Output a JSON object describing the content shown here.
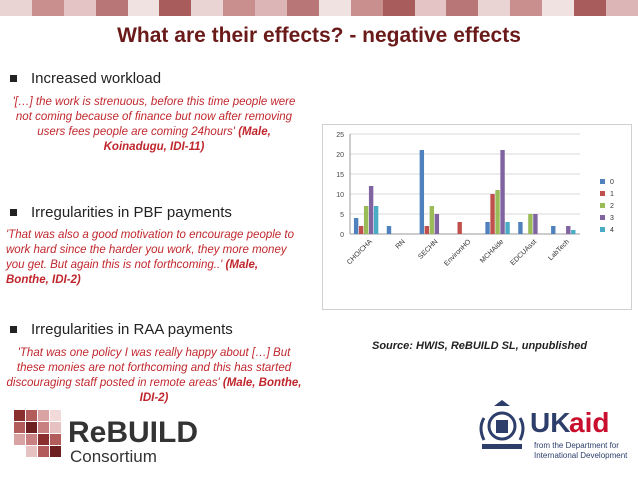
{
  "top_band_colors": [
    "#e9d3d3",
    "#c98f8f",
    "#e4c4c4",
    "#b97676",
    "#f1e2e2",
    "#a95c5c",
    "#e9d3d3",
    "#c98f8f",
    "#dcb6b6",
    "#b97676",
    "#f1e2e2",
    "#c98f8f",
    "#a95c5c",
    "#e4c4c4",
    "#b97676",
    "#e9d3d3",
    "#c98f8f",
    "#f1e2e2",
    "#a95c5c",
    "#dcb6b6"
  ],
  "slide": {
    "title": "What are their effects?  - negative effects",
    "sections": [
      {
        "bullet": "Increased workload",
        "quote_text": "'[…] the work is strenuous, before this time people were not coming because of finance but  now   after removing users fees people are coming 24hours'",
        "quote_attr": " (Male,  Koinadugu, IDI-11)"
      },
      {
        "bullet": "Irregularities in PBF payments",
        "quote_text": "'That was also a good motivation to encourage people to work hard  since the harder you work, they more money you get. But again this is not forthcoming..'",
        "quote_attr": " (Male, Bonthe, IDI-2)"
      },
      {
        "bullet": "Irregularities in RAA payments",
        "quote_text": " 'That was one policy I was really happy about […] But these monies are not forthcoming and this has started discouraging staff posted in remote areas'",
        "quote_attr": " (Male, Bonthe, IDI-2)"
      }
    ],
    "source": "Source: HWIS, ReBUILD SL, unpublished"
  },
  "logos": {
    "rebuild_text": "ReBUILD",
    "rebuild_sub": "Consortium",
    "ukaid_uk": "UK",
    "ukaid_aid": "aid",
    "ukaid_line1": "from the Department for",
    "ukaid_line2": "International Development"
  },
  "chart_data": {
    "type": "bar",
    "categories": [
      "CHO/CHA",
      "RN",
      "SECHN",
      "EnvironHO",
      "MCHAide",
      "EDCUAsst",
      "LabTech"
    ],
    "series": [
      {
        "name": "0",
        "color": "#4f81bd",
        "values": [
          4,
          2,
          21,
          0,
          3,
          3,
          2
        ]
      },
      {
        "name": "1",
        "color": "#c0504d",
        "values": [
          2,
          0,
          2,
          3,
          10,
          0,
          0
        ]
      },
      {
        "name": "2",
        "color": "#9bbb59",
        "values": [
          7,
          0,
          7,
          0,
          11,
          5,
          0
        ]
      },
      {
        "name": "3",
        "color": "#8064a2",
        "values": [
          12,
          0,
          5,
          0,
          21,
          5,
          2
        ]
      },
      {
        "name": "4",
        "color": "#4bacc6",
        "values": [
          7,
          0,
          0,
          0,
          3,
          0,
          1
        ]
      }
    ],
    "yticks": [
      0,
      5,
      10,
      15,
      20,
      25
    ],
    "ylim": [
      0,
      25
    ],
    "legend": "right"
  }
}
